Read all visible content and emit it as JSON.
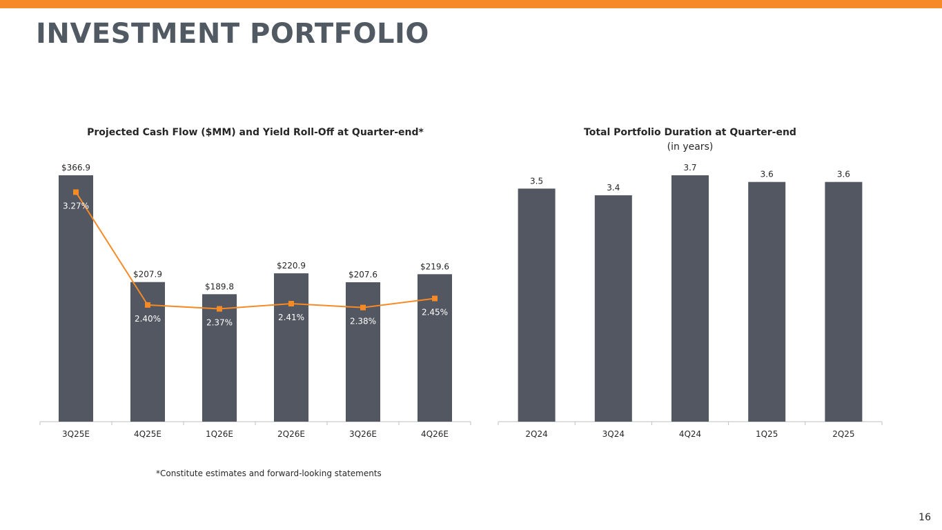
{
  "page_title": "INVESTMENT PORTFOLIO",
  "footnote": "*Constitute estimates and forward-looking statements",
  "page_number": "16",
  "colors": {
    "accent": "#F58A26",
    "bar": "#535761",
    "title": "#515A62",
    "axis": "#BFBFBF",
    "text": "#262626"
  },
  "chart_data": [
    {
      "type": "bar",
      "title": "Projected Cash Flow ($MM) and Yield Roll-Off at Quarter-end*",
      "categories": [
        "3Q25E",
        "4Q25E",
        "1Q26E",
        "2Q26E",
        "3Q26E",
        "4Q26E"
      ],
      "series": [
        {
          "name": "Projected Cash Flow ($MM)",
          "type": "bar",
          "values": [
            366.9,
            207.9,
            189.8,
            220.9,
            207.6,
            219.6
          ],
          "labels": [
            "$366.9",
            "$207.9",
            "$189.8",
            "$220.9",
            "$207.6",
            "$219.6"
          ]
        },
        {
          "name": "Yield Roll-Off",
          "type": "line",
          "values": [
            3.27,
            2.4,
            2.37,
            2.41,
            2.38,
            2.45
          ],
          "labels": [
            "3.27%",
            "2.40%",
            "2.37%",
            "2.41%",
            "2.38%",
            "2.45%"
          ]
        }
      ],
      "ylim": [
        0,
        366.9
      ],
      "y2lim": [
        1.5,
        3.4
      ],
      "xlabel": "",
      "ylabel": "",
      "grid": false
    },
    {
      "type": "bar",
      "title": "Total Portfolio Duration at Quarter-end",
      "subtitle": "(in years)",
      "categories": [
        "2Q24",
        "3Q24",
        "4Q24",
        "1Q25",
        "2Q25"
      ],
      "series": [
        {
          "name": "Duration (years)",
          "values": [
            3.5,
            3.4,
            3.7,
            3.6,
            3.6
          ],
          "labels": [
            "3.5",
            "3.4",
            "3.7",
            "3.6",
            "3.6"
          ]
        }
      ],
      "ylim": [
        0,
        3.7
      ],
      "xlabel": "",
      "ylabel": "",
      "grid": false
    }
  ]
}
